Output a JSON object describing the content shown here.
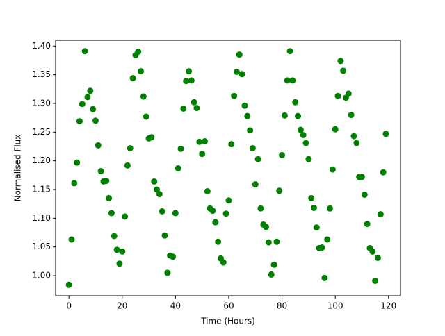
{
  "chart_data": {
    "type": "scatter",
    "xlabel": "Time (Hours)",
    "ylabel": "Normalised Flux",
    "color": "#008000",
    "x": [
      0,
      1,
      2,
      3,
      4,
      5,
      6,
      7,
      8,
      9,
      10,
      11,
      12,
      13,
      14,
      15,
      16,
      17,
      18,
      19,
      20,
      21,
      22,
      23,
      24,
      25,
      26,
      27,
      28,
      29,
      30,
      31,
      32,
      33,
      34,
      35,
      36,
      37,
      38,
      39,
      40,
      41,
      42,
      43,
      44,
      45,
      46,
      47,
      48,
      49,
      50,
      51,
      52,
      53,
      54,
      55,
      56,
      57,
      58,
      59,
      60,
      61,
      62,
      63,
      64,
      65,
      66,
      67,
      68,
      69,
      70,
      71,
      72,
      73,
      74,
      75,
      76,
      77,
      78,
      79,
      80,
      81,
      82,
      83,
      84,
      85,
      86,
      87,
      88,
      89,
      90,
      91,
      92,
      93,
      94,
      95,
      96,
      97,
      98,
      99,
      100,
      101,
      102,
      103,
      104,
      105,
      106,
      107,
      108,
      109,
      110,
      111,
      112,
      113,
      114,
      115,
      116,
      117,
      118,
      119
    ],
    "values": [
      0.984,
      1.063,
      1.161,
      1.197,
      1.269,
      1.299,
      1.391,
      1.311,
      1.322,
      1.29,
      1.27,
      1.227,
      1.182,
      1.164,
      1.165,
      1.135,
      1.109,
      1.069,
      1.045,
      1.021,
      1.042,
      1.103,
      1.192,
      1.222,
      1.344,
      1.384,
      1.39,
      1.356,
      1.312,
      1.277,
      1.239,
      1.241,
      1.164,
      1.15,
      1.142,
      1.112,
      1.07,
      1.005,
      1.035,
      1.033,
      1.109,
      1.187,
      1.221,
      1.291,
      1.339,
      1.356,
      1.34,
      1.302,
      1.292,
      1.233,
      1.212,
      1.234,
      1.147,
      1.117,
      1.113,
      1.093,
      1.059,
      1.03,
      1.023,
      1.108,
      1.131,
      1.229,
      1.313,
      1.355,
      1.385,
      1.351,
      1.296,
      1.278,
      1.253,
      1.222,
      1.159,
      1.203,
      1.117,
      1.089,
      1.085,
      1.058,
      1.002,
      1.019,
      1.059,
      1.148,
      1.21,
      1.279,
      1.34,
      1.391,
      1.34,
      1.302,
      1.278,
      1.254,
      1.245,
      1.231,
      1.203,
      1.135,
      1.118,
      1.084,
      1.048,
      1.049,
      0.996,
      1.063,
      1.117,
      1.185,
      1.255,
      1.313,
      1.374,
      1.357,
      1.31,
      1.317,
      1.28,
      1.243,
      1.231,
      1.172,
      1.172,
      1.141,
      1.09,
      1.048,
      1.042,
      0.991,
      1.031,
      1.107,
      1.18,
      1.247
    ],
    "xlim": [
      -5,
      124.5
    ],
    "ylim": [
      0.965,
      1.41
    ],
    "xticks": [
      0,
      20,
      40,
      60,
      80,
      100,
      120
    ],
    "yticks": [
      {
        "value": 1.0,
        "label": "1.00"
      },
      1.05,
      {
        "value": 1.1,
        "label": "1.10"
      },
      1.15,
      {
        "value": 1.2,
        "label": "1.20"
      },
      1.25,
      {
        "value": 1.3,
        "label": "1.30"
      },
      1.35,
      {
        "value": 1.4,
        "label": "1.40"
      }
    ]
  }
}
